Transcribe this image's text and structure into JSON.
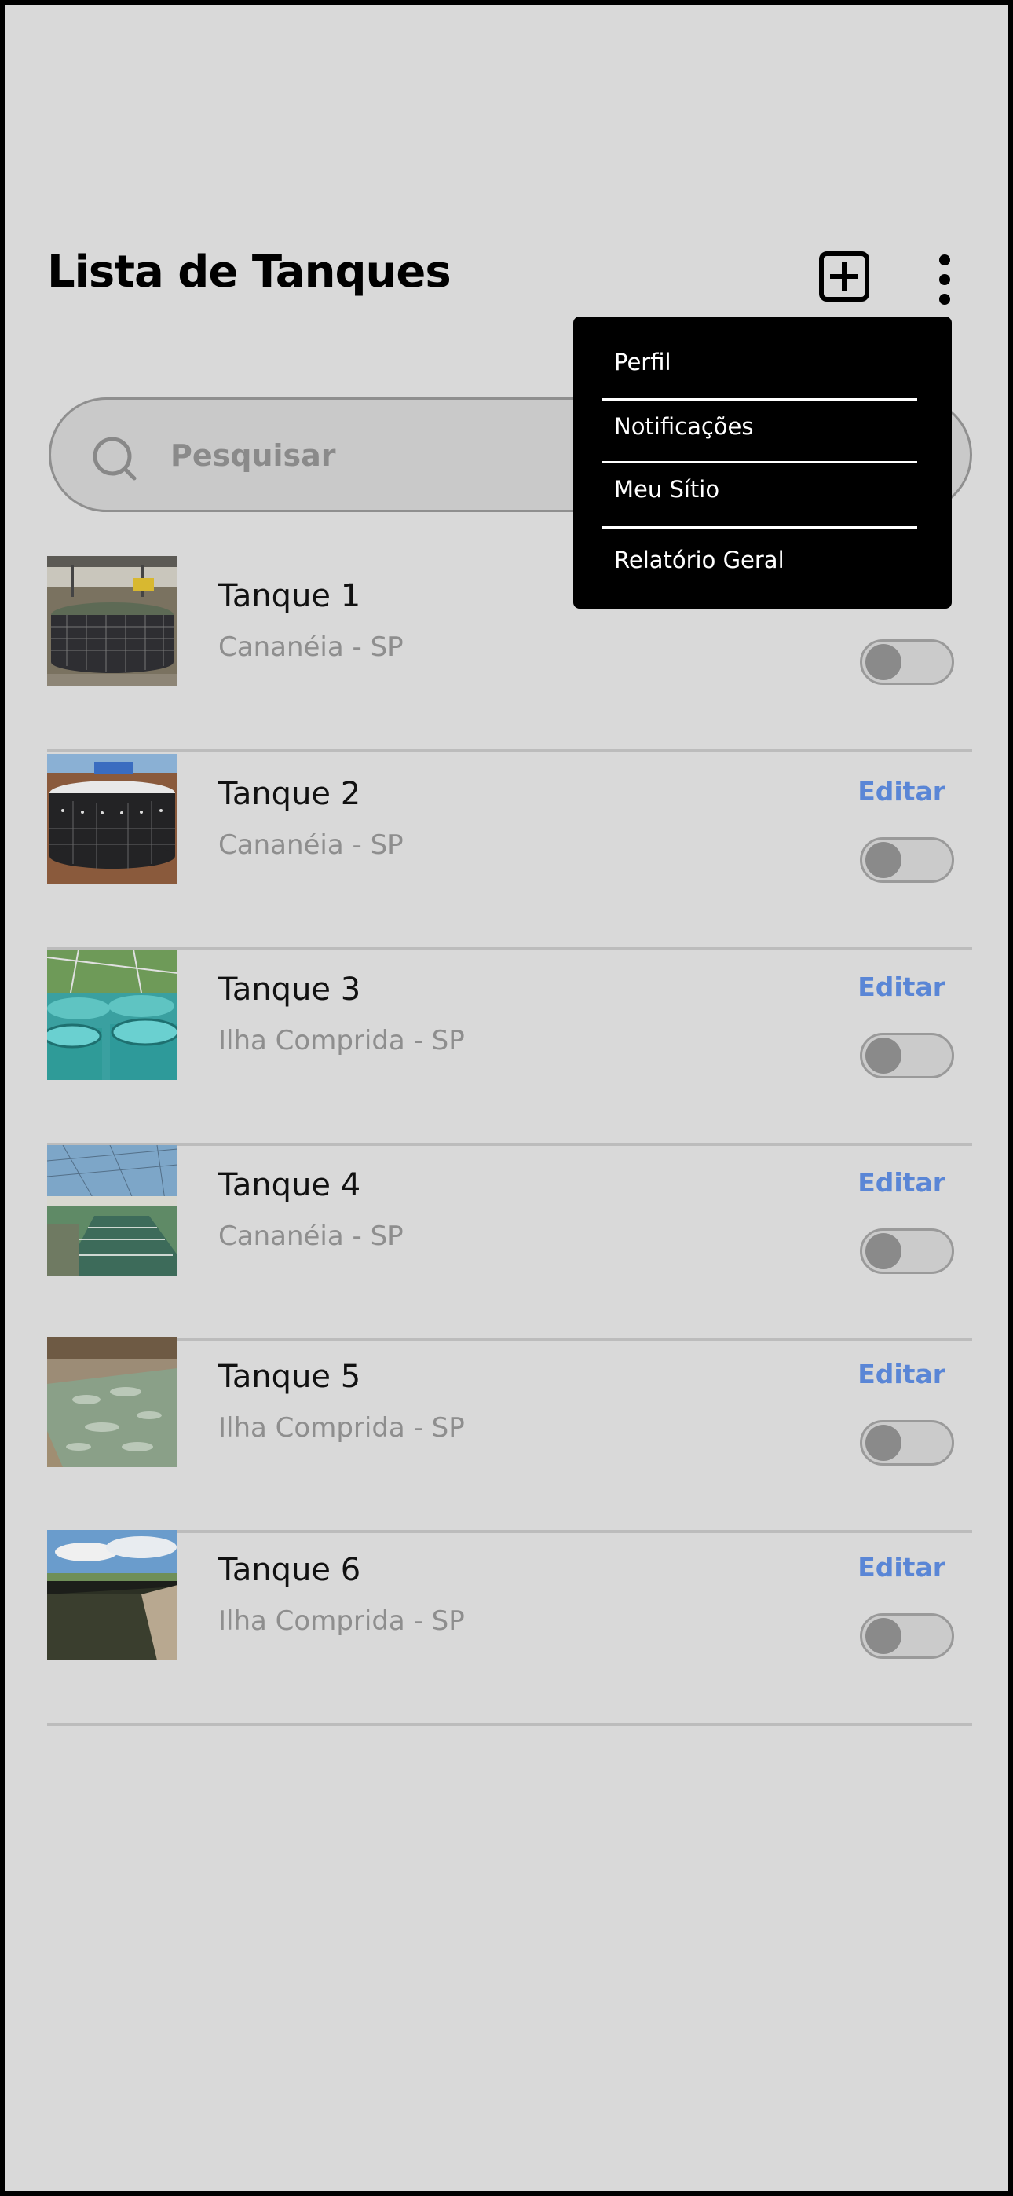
{
  "header": {
    "title": "Lista de Tanques",
    "add_icon": "plus-square-icon",
    "more_icon": "more-vertical-icon"
  },
  "search": {
    "placeholder": "Pesquisar",
    "value": "",
    "icon": "search-icon"
  },
  "menu": {
    "items": [
      {
        "label": "Perfil"
      },
      {
        "label": "Notificações"
      },
      {
        "label": "Meu Sítio"
      },
      {
        "label": "Relatório Geral"
      }
    ]
  },
  "tanks": [
    {
      "name": "Tanque 1",
      "location": "Cananéia - SP",
      "edit_label": "",
      "active": false
    },
    {
      "name": "Tanque 2",
      "location": "Cananéia - SP",
      "edit_label": "Editar",
      "active": false
    },
    {
      "name": "Tanque 3",
      "location": "Ilha Comprida - SP",
      "edit_label": "Editar",
      "active": false
    },
    {
      "name": "Tanque 4",
      "location": "Cananéia - SP",
      "edit_label": "Editar",
      "active": false
    },
    {
      "name": "Tanque 5",
      "location": "Ilha Comprida - SP",
      "edit_label": "Editar",
      "active": false
    },
    {
      "name": "Tanque 6",
      "location": "Ilha Comprida - SP",
      "edit_label": "Editar",
      "active": false
    }
  ],
  "colors": {
    "background": "#d9d9d9",
    "accent": "#5a86d6",
    "menu_background": "#000000",
    "muted_text": "#8e8e8e"
  }
}
